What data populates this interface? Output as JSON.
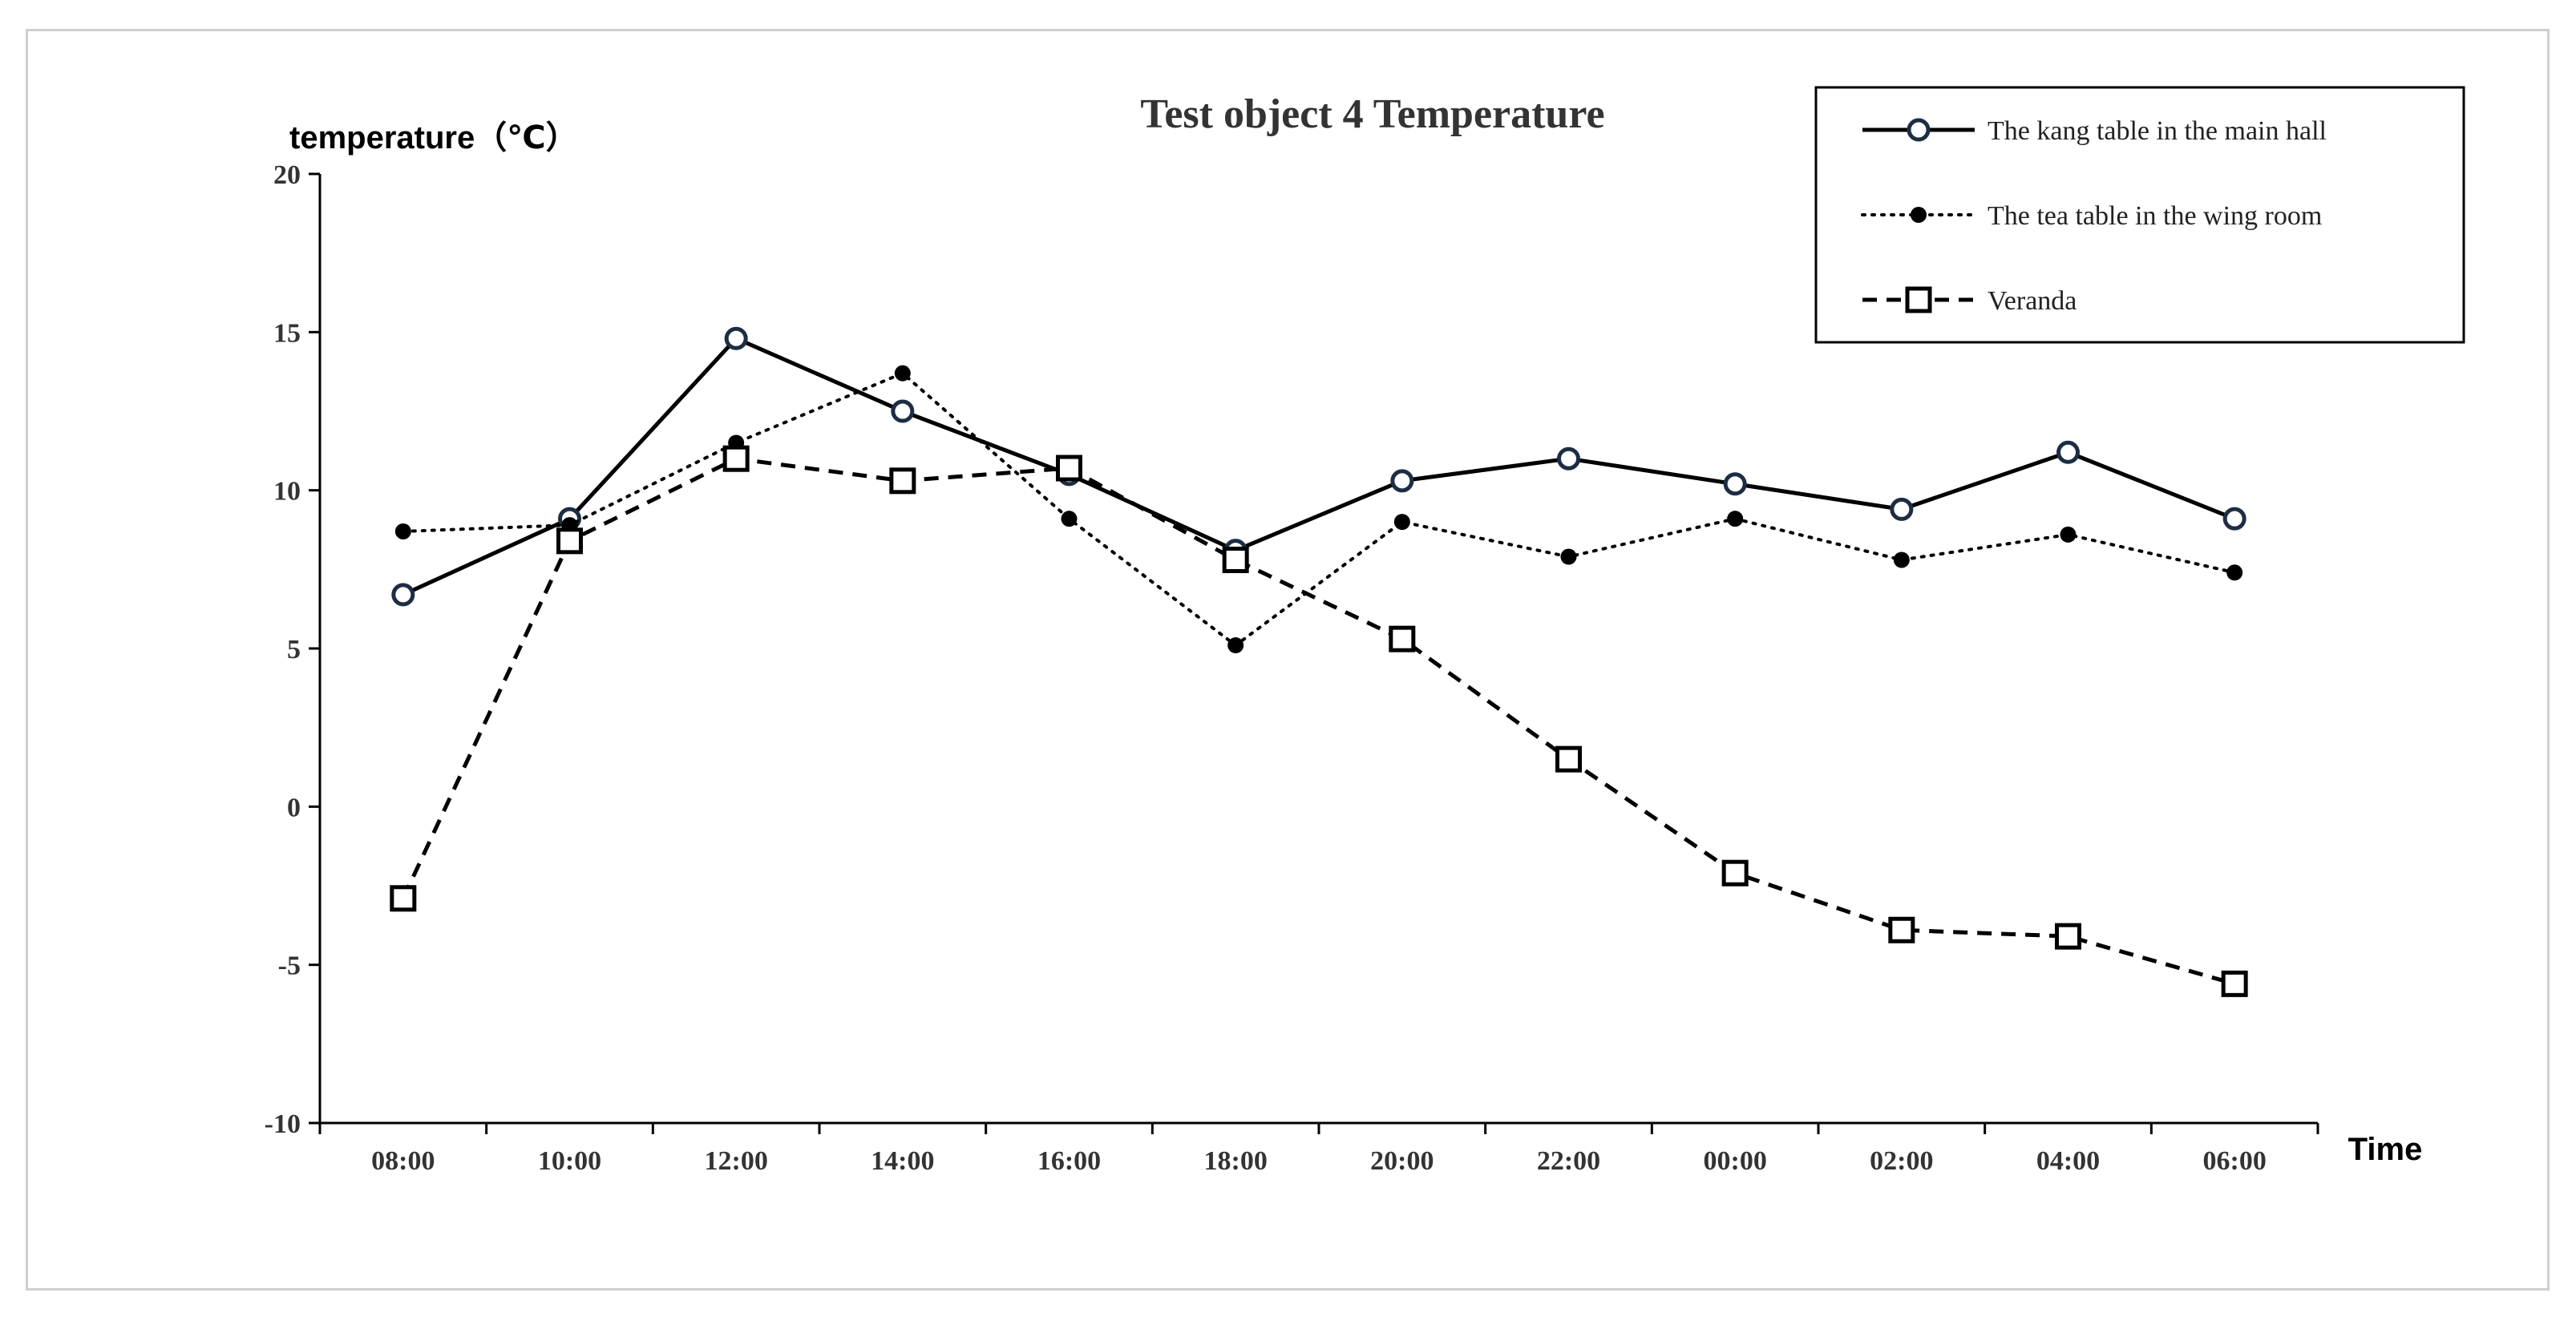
{
  "chart_data": {
    "type": "line",
    "title": "Test object 4 Temperature",
    "xlabel": "Time",
    "ylabel": "temperature（℃）",
    "categories": [
      "08:00",
      "10:00",
      "12:00",
      "14:00",
      "16:00",
      "18:00",
      "20:00",
      "22:00",
      "00:00",
      "02:00",
      "04:00",
      "06:00"
    ],
    "ylim": [
      -10,
      20
    ],
    "yticks": [
      -10,
      -5,
      0,
      5,
      10,
      15,
      20
    ],
    "grid": false,
    "legend_position": "top-right",
    "series": [
      {
        "name": "The kang table in the main hall",
        "style": "solid",
        "marker": "open-circle",
        "values": [
          6.7,
          9.1,
          14.8,
          12.5,
          10.5,
          8.1,
          10.3,
          11.0,
          10.2,
          9.4,
          11.2,
          9.1
        ]
      },
      {
        "name": "The tea table in the wing room",
        "style": "dotted",
        "marker": "filled-dot",
        "values": [
          8.7,
          8.9,
          11.5,
          13.7,
          9.1,
          5.1,
          9.0,
          7.9,
          9.1,
          7.8,
          8.6,
          7.4
        ]
      },
      {
        "name": "Veranda",
        "style": "dashed",
        "marker": "open-square",
        "values": [
          -2.9,
          8.4,
          11.0,
          10.3,
          10.7,
          7.8,
          5.3,
          1.5,
          -2.1,
          -3.9,
          -4.1,
          -5.6
        ]
      }
    ],
    "colors": {
      "line": "#000000",
      "circle_edge": "#1c2d44",
      "axis": "#000000",
      "title": "#333333"
    }
  }
}
